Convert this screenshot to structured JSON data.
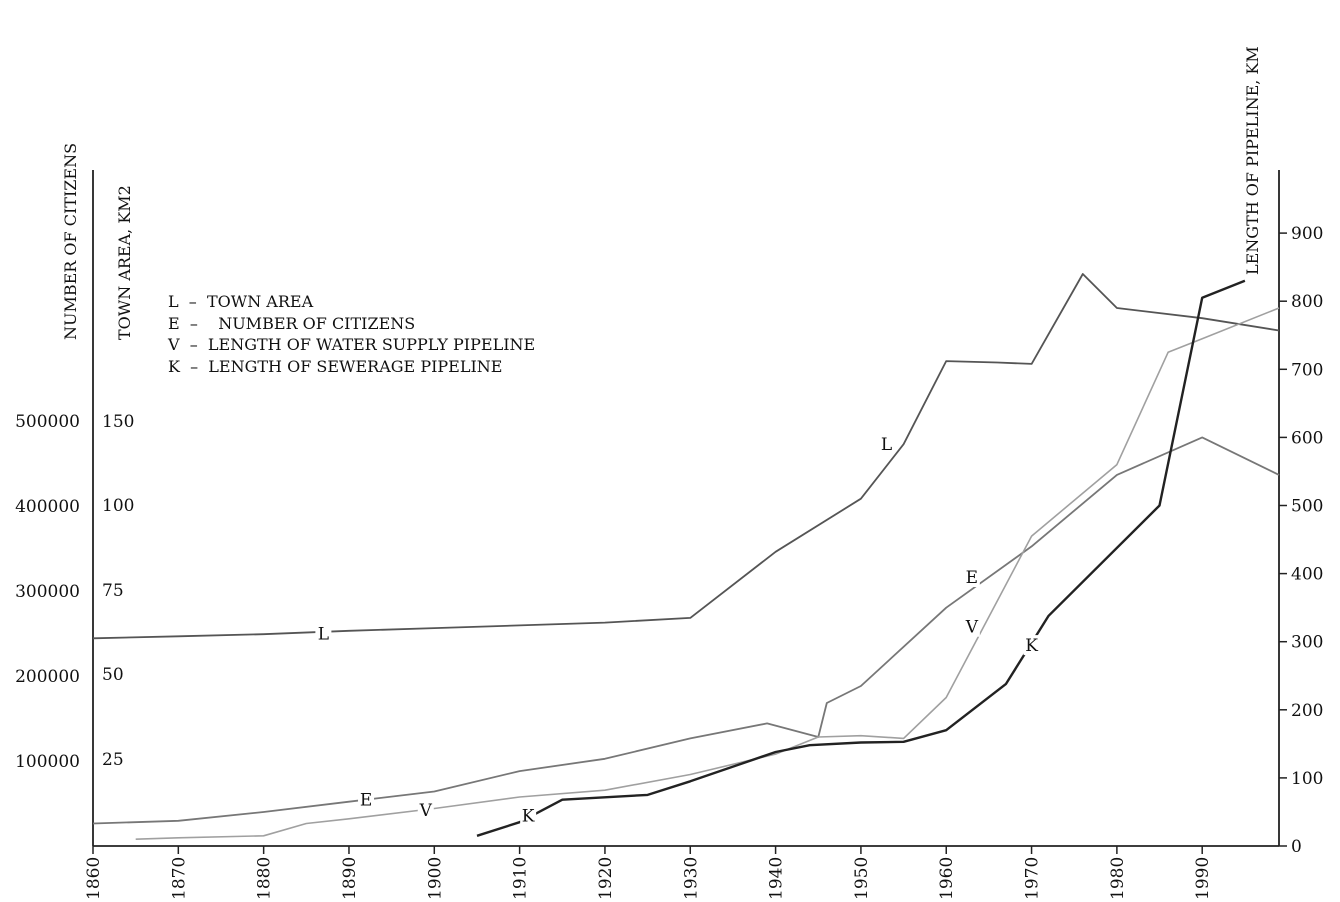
{
  "chart_data": {
    "type": "line",
    "title": "",
    "legend": {
      "placement": "top-left",
      "entries": [
        "L  –  TOWN AREA",
        "E  –    NUMBER OF CITIZENS",
        "V  –  LENGTH OF WATER SUPPLY PIPELINE",
        "K  –  LENGTH OF SEWERAGE PIPELINE"
      ]
    },
    "axes": {
      "x": {
        "range": [
          1860,
          1999
        ],
        "ticks": [
          "1860",
          "1870",
          "1880",
          "1890",
          "1900",
          "1910",
          "1920",
          "1930",
          "1940",
          "1950",
          "1960",
          "1970",
          "1980",
          "1990"
        ]
      },
      "y_citizens": {
        "label": "NUMBER OF CITIZENS",
        "ticks": [
          "100000",
          "200000",
          "300000",
          "400000",
          "500000"
        ]
      },
      "y_area": {
        "label": "TOWN AREA, KM2",
        "ticks": [
          "25",
          "50",
          "75",
          "100",
          "150"
        ]
      },
      "y_pipeline": {
        "label": "LENGTH OF PIPELINE, KM",
        "range": [
          0,
          1000
        ],
        "ticks": [
          "0",
          "100",
          "200",
          "300",
          "400",
          "500",
          "600",
          "700",
          "800",
          "900"
        ]
      }
    },
    "grid": false,
    "series": [
      {
        "key": "L",
        "name": "L",
        "color": "#555555",
        "axis": "pipeline_scale",
        "label_points": [
          [
            1887,
            312
          ],
          [
            1953,
            590
          ],
          [
            1887,
            312
          ]
        ],
        "points": [
          [
            1860,
            305
          ],
          [
            1870,
            308
          ],
          [
            1880,
            311
          ],
          [
            1890,
            316
          ],
          [
            1900,
            320
          ],
          [
            1910,
            324
          ],
          [
            1920,
            328
          ],
          [
            1930,
            335
          ],
          [
            1940,
            432
          ],
          [
            1950,
            510
          ],
          [
            1955,
            590
          ],
          [
            1960,
            712
          ],
          [
            1966,
            710
          ],
          [
            1970,
            708
          ],
          [
            1976,
            840
          ],
          [
            1980,
            790
          ],
          [
            1990,
            775
          ],
          [
            1999,
            757
          ]
        ]
      },
      {
        "key": "E",
        "name": "E",
        "color": "#777777",
        "axis": "pipeline_scale",
        "label_points": [
          [
            1892,
            68
          ],
          [
            1963,
            395
          ]
        ],
        "points": [
          [
            1860,
            33
          ],
          [
            1870,
            37
          ],
          [
            1880,
            50
          ],
          [
            1890,
            65
          ],
          [
            1900,
            80
          ],
          [
            1910,
            110
          ],
          [
            1920,
            128
          ],
          [
            1930,
            158
          ],
          [
            1939,
            180
          ],
          [
            1945,
            160
          ],
          [
            1946,
            210
          ],
          [
            1950,
            235
          ],
          [
            1960,
            350
          ],
          [
            1970,
            440
          ],
          [
            1980,
            545
          ],
          [
            1990,
            600
          ],
          [
            1999,
            545
          ]
        ]
      },
      {
        "key": "V",
        "name": "V",
        "color": "#a0a0a0",
        "axis": "pipeline_scale",
        "label_points": [
          [
            1899,
            53
          ],
          [
            1963,
            322
          ]
        ],
        "points": [
          [
            1865,
            10
          ],
          [
            1870,
            12
          ],
          [
            1880,
            15
          ],
          [
            1885,
            33
          ],
          [
            1890,
            40
          ],
          [
            1900,
            55
          ],
          [
            1910,
            72
          ],
          [
            1920,
            82
          ],
          [
            1930,
            105
          ],
          [
            1940,
            135
          ],
          [
            1945,
            160
          ],
          [
            1950,
            162
          ],
          [
            1955,
            158
          ],
          [
            1960,
            218
          ],
          [
            1970,
            455
          ],
          [
            1980,
            560
          ],
          [
            1986,
            725
          ],
          [
            1990,
            745
          ],
          [
            1999,
            790
          ]
        ]
      },
      {
        "key": "K",
        "name": "K",
        "color": "#222222",
        "axis": "pipeline_scale",
        "label_points": [
          [
            1911,
            45
          ],
          [
            1970,
            295
          ]
        ],
        "points": [
          [
            1905,
            15
          ],
          [
            1910,
            35
          ],
          [
            1915,
            68
          ],
          [
            1925,
            75
          ],
          [
            1930,
            95
          ],
          [
            1940,
            138
          ],
          [
            1944,
            148
          ],
          [
            1950,
            152
          ],
          [
            1955,
            153
          ],
          [
            1960,
            170
          ],
          [
            1967,
            238
          ],
          [
            1972,
            338
          ],
          [
            1985,
            500
          ],
          [
            1990,
            805
          ],
          [
            1995,
            830
          ]
        ]
      }
    ]
  }
}
